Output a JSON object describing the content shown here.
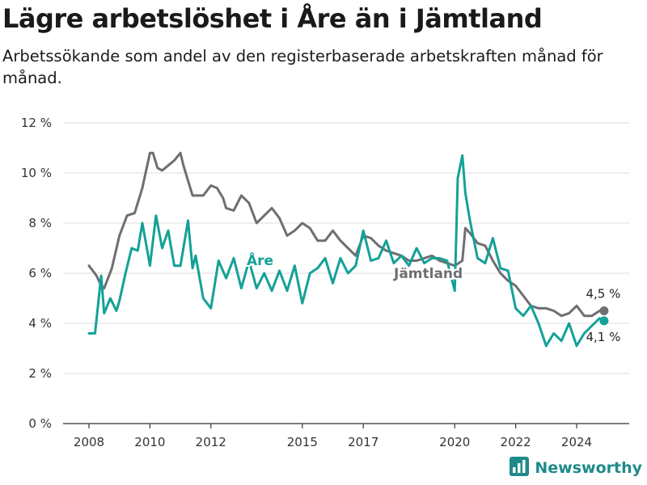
{
  "title": "Lägre arbetslöshet i Åre än i Jämtland",
  "subtitle": "Arbetssökande som andel av den registerbaserade arbetskraften månad för månad.",
  "brand": {
    "name": "Newsworthy",
    "icon": "bar-chart-logo-icon"
  },
  "colors": {
    "jamtland": "#6e6e73",
    "are": "#14a197",
    "grid": "#dcdcdc",
    "axis": "#333333",
    "brand": "#1f8a8a"
  },
  "chart_data": {
    "type": "line",
    "title": "Lägre arbetslöshet i Åre än i Jämtland",
    "xlabel": "",
    "ylabel": "",
    "xlim": [
      2007.6,
      2025.7
    ],
    "ylim": [
      0,
      12
    ],
    "y_ticks": [
      {
        "value": 0,
        "label": "0 %"
      },
      {
        "value": 2,
        "label": "2 %"
      },
      {
        "value": 4,
        "label": "4 %"
      },
      {
        "value": 6,
        "label": "6 %"
      },
      {
        "value": 8,
        "label": "8 %"
      },
      {
        "value": 10,
        "label": "10 %"
      },
      {
        "value": 12,
        "label": "12 %"
      }
    ],
    "x_ticks": [
      {
        "value": 2008,
        "label": "2008"
      },
      {
        "value": 2010,
        "label": "2010"
      },
      {
        "value": 2012,
        "label": "2012"
      },
      {
        "value": 2015,
        "label": "2015"
      },
      {
        "value": 2017,
        "label": "2017"
      },
      {
        "value": 2020,
        "label": "2020"
      },
      {
        "value": 2022,
        "label": "2022"
      },
      {
        "value": 2024,
        "label": "2024"
      }
    ],
    "grid": true,
    "legend": "inline",
    "series": [
      {
        "name": "Jämtland",
        "color": "#6e6e73",
        "end_label": "4,5 %",
        "x": [
          2008.0,
          2008.25,
          2008.4,
          2008.5,
          2008.75,
          2009.0,
          2009.25,
          2009.5,
          2009.6,
          2009.75,
          2010.0,
          2010.1,
          2010.25,
          2010.4,
          2010.6,
          2010.8,
          2011.0,
          2011.1,
          2011.4,
          2011.5,
          2011.75,
          2012.0,
          2012.2,
          2012.4,
          2012.5,
          2012.75,
          2013.0,
          2013.25,
          2013.5,
          2013.75,
          2014.0,
          2014.25,
          2014.5,
          2014.75,
          2015.0,
          2015.25,
          2015.5,
          2015.75,
          2016.0,
          2016.25,
          2016.5,
          2016.75,
          2017.0,
          2017.25,
          2017.5,
          2017.75,
          2018.0,
          2018.25,
          2018.5,
          2018.75,
          2019.0,
          2019.25,
          2019.5,
          2019.75,
          2020.0,
          2020.25,
          2020.35,
          2020.5,
          2020.75,
          2021.0,
          2021.25,
          2021.5,
          2021.75,
          2022.0,
          2022.25,
          2022.5,
          2022.75,
          2023.0,
          2023.25,
          2023.5,
          2023.75,
          2024.0,
          2024.25,
          2024.5,
          2024.75,
          2024.9
        ],
        "values": [
          6.3,
          5.9,
          5.5,
          5.4,
          6.2,
          7.5,
          8.3,
          8.4,
          8.8,
          9.4,
          10.8,
          10.8,
          10.2,
          10.1,
          10.3,
          10.5,
          10.8,
          10.3,
          9.1,
          9.1,
          9.1,
          9.5,
          9.4,
          9.0,
          8.6,
          8.5,
          9.1,
          8.8,
          8.0,
          8.3,
          8.6,
          8.2,
          7.5,
          7.7,
          8.0,
          7.8,
          7.3,
          7.3,
          7.7,
          7.3,
          7.0,
          6.7,
          7.5,
          7.4,
          7.1,
          6.9,
          6.8,
          6.7,
          6.5,
          6.5,
          6.6,
          6.7,
          6.5,
          6.4,
          6.3,
          6.5,
          7.8,
          7.6,
          7.2,
          7.1,
          6.5,
          6.0,
          5.7,
          5.5,
          5.1,
          4.7,
          4.6,
          4.6,
          4.5,
          4.3,
          4.4,
          4.7,
          4.3,
          4.3,
          4.5,
          4.5
        ]
      },
      {
        "name": "Åre",
        "color": "#14a197",
        "end_label": "4,1 %",
        "x": [
          2008.0,
          2008.2,
          2008.4,
          2008.5,
          2008.7,
          2008.9,
          2009.0,
          2009.2,
          2009.4,
          2009.6,
          2009.75,
          2009.9,
          2010.0,
          2010.2,
          2010.4,
          2010.6,
          2010.8,
          2011.0,
          2011.25,
          2011.4,
          2011.5,
          2011.75,
          2012.0,
          2012.25,
          2012.5,
          2012.75,
          2013.0,
          2013.25,
          2013.5,
          2013.75,
          2014.0,
          2014.25,
          2014.5,
          2014.75,
          2015.0,
          2015.25,
          2015.5,
          2015.75,
          2016.0,
          2016.25,
          2016.5,
          2016.75,
          2017.0,
          2017.25,
          2017.5,
          2017.75,
          2018.0,
          2018.25,
          2018.5,
          2018.75,
          2019.0,
          2019.25,
          2019.5,
          2019.75,
          2020.0,
          2020.1,
          2020.25,
          2020.35,
          2020.5,
          2020.75,
          2021.0,
          2021.25,
          2021.5,
          2021.75,
          2022.0,
          2022.25,
          2022.5,
          2022.75,
          2023.0,
          2023.25,
          2023.5,
          2023.75,
          2024.0,
          2024.25,
          2024.5,
          2024.75,
          2024.9
        ],
        "values": [
          3.6,
          3.6,
          5.9,
          4.4,
          5.0,
          4.5,
          4.9,
          6.0,
          7.0,
          6.9,
          8.0,
          7.0,
          6.3,
          8.3,
          7.0,
          7.7,
          6.3,
          6.3,
          8.1,
          6.2,
          6.7,
          5.0,
          4.6,
          6.5,
          5.8,
          6.6,
          5.4,
          6.5,
          5.4,
          6.0,
          5.3,
          6.1,
          5.3,
          6.3,
          4.8,
          6.0,
          6.2,
          6.6,
          5.6,
          6.6,
          6.0,
          6.3,
          7.7,
          6.5,
          6.6,
          7.3,
          6.4,
          6.7,
          6.3,
          7.0,
          6.4,
          6.6,
          6.6,
          6.5,
          5.3,
          9.8,
          10.7,
          9.2,
          8.1,
          6.6,
          6.4,
          7.4,
          6.2,
          6.1,
          4.6,
          4.3,
          4.7,
          4.0,
          3.1,
          3.6,
          3.3,
          4.0,
          3.1,
          3.6,
          3.9,
          4.2,
          4.1
        ]
      }
    ]
  }
}
